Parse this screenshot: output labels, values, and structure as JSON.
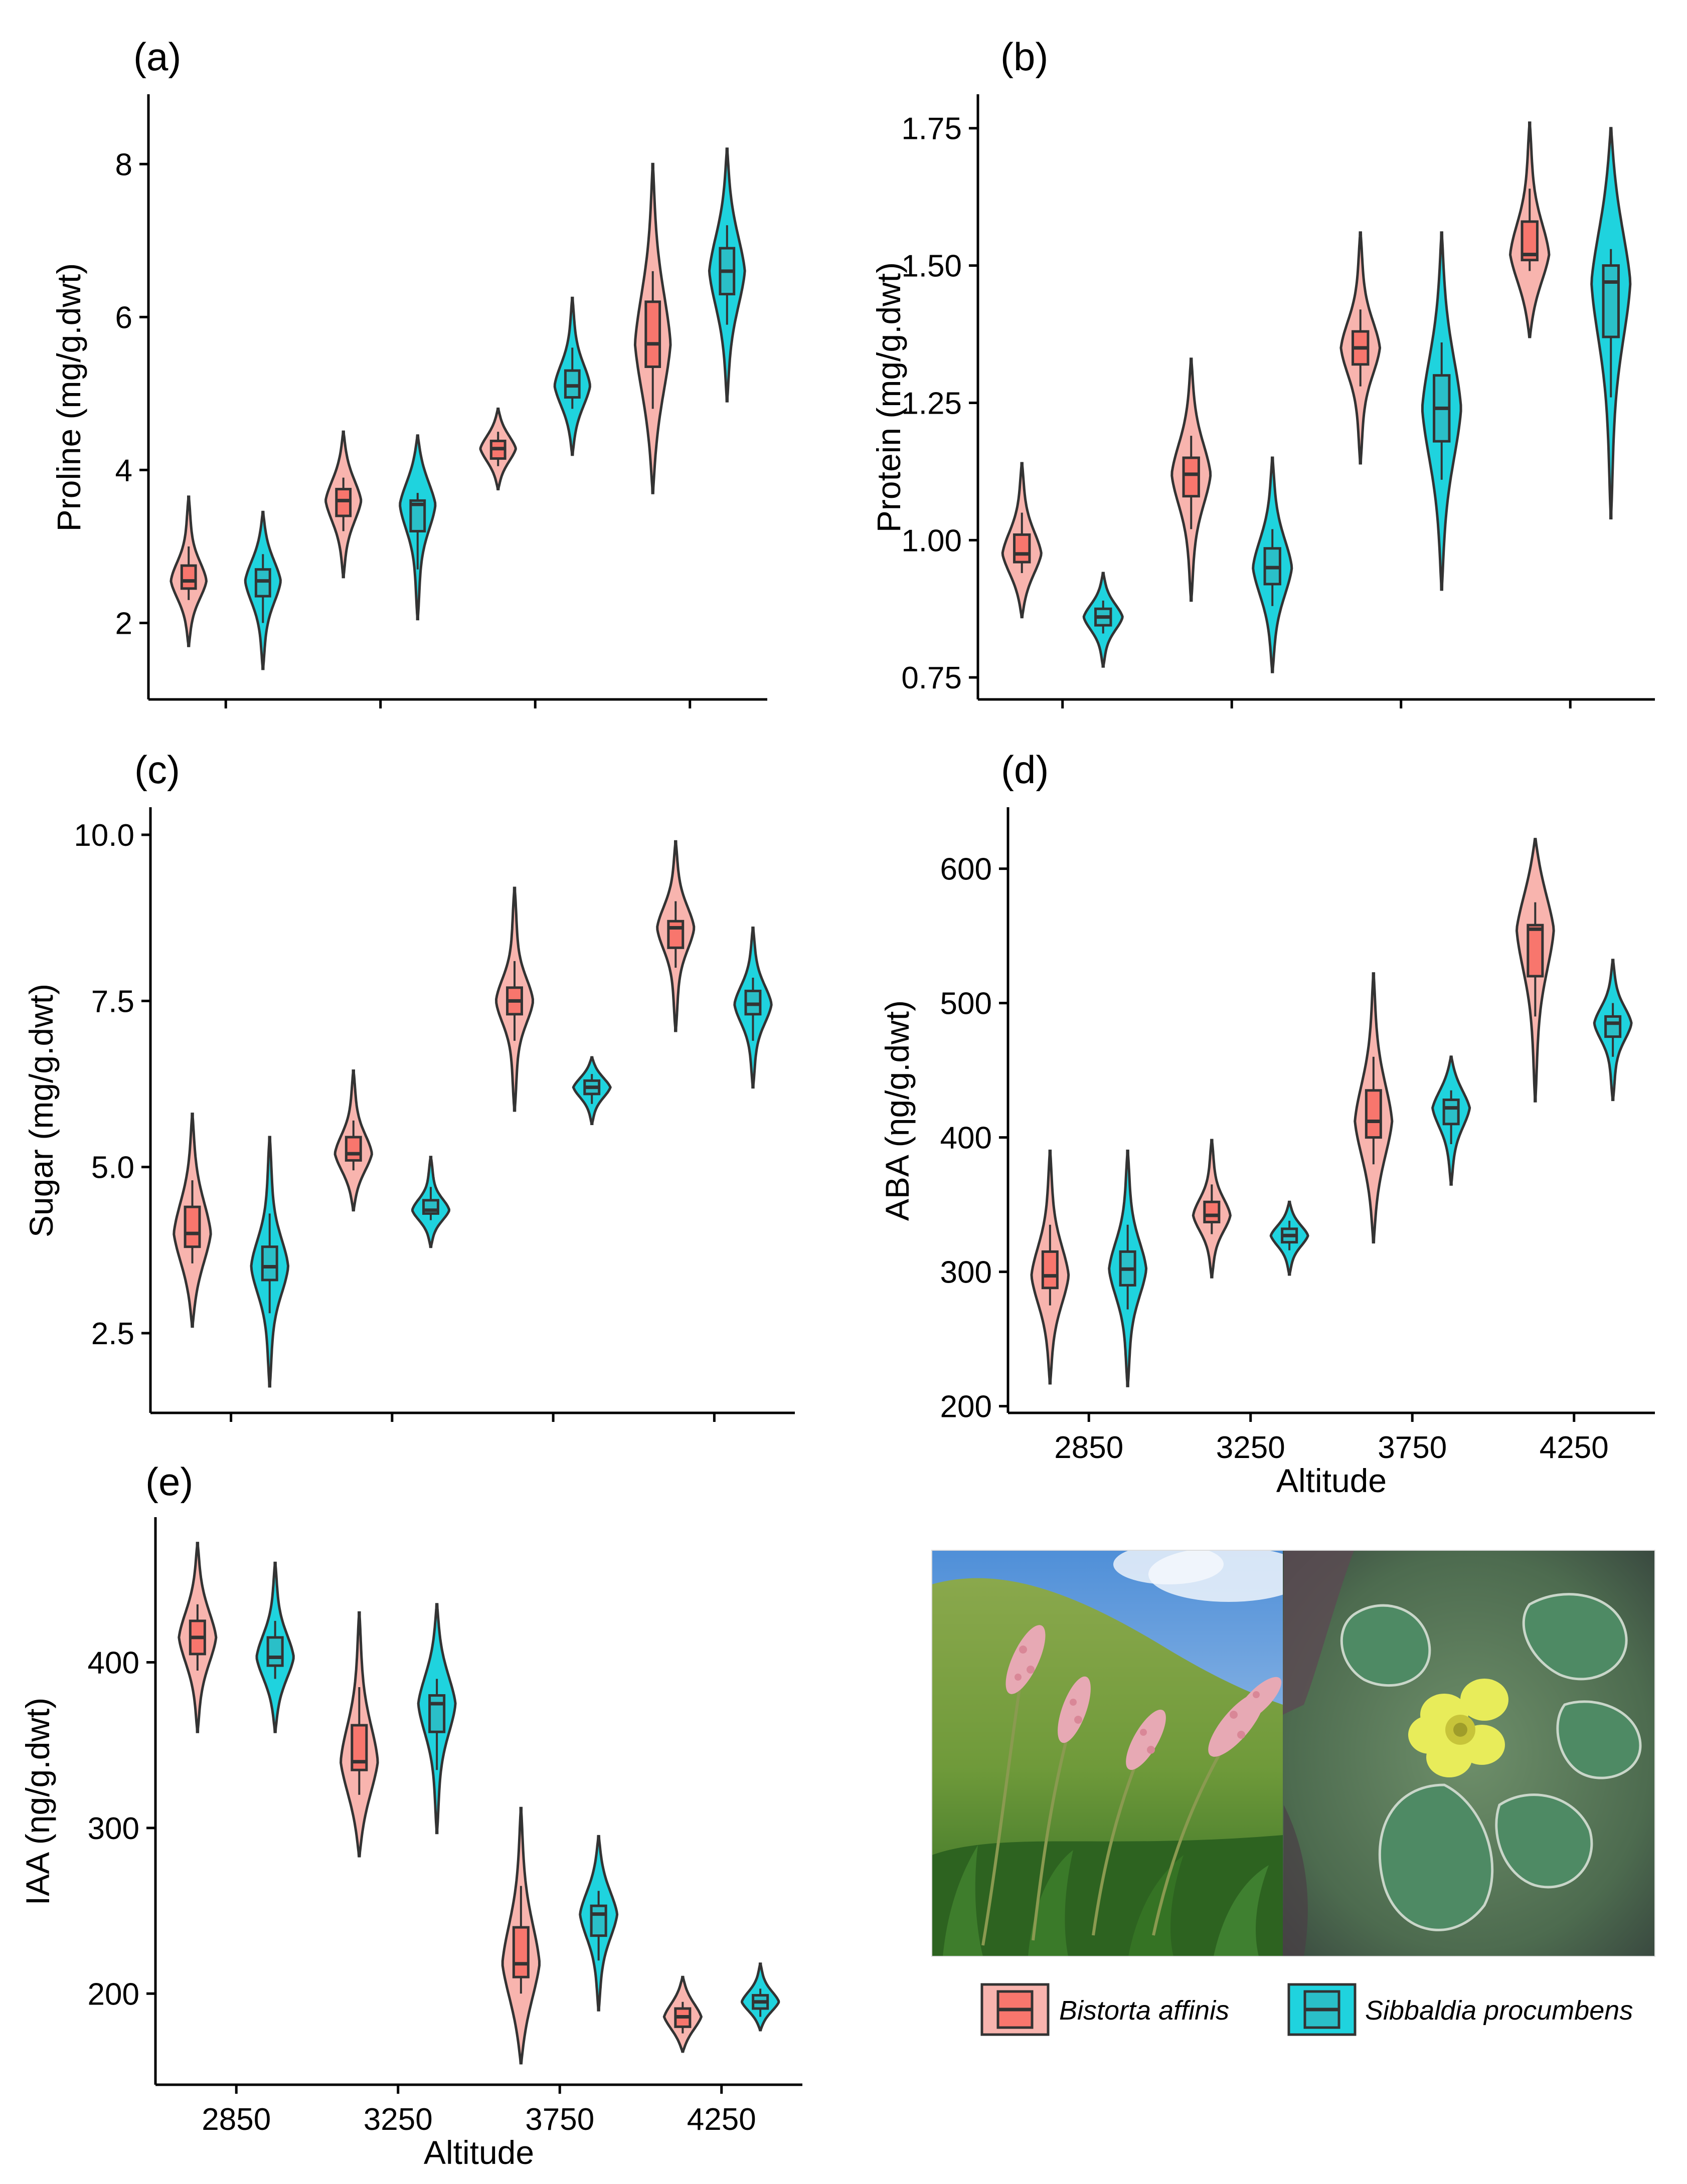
{
  "colors": {
    "Bistorta affinis": {
      "violin": "#F8B4AE",
      "box": "#F8766D"
    },
    "Sibbaldia procumbens": {
      "violin": "#1FD3DE",
      "box": "#2ABFC8"
    },
    "outline": "#333333"
  },
  "chart_data": [
    {
      "panel": "(a)",
      "type": "violin",
      "ylabel": "Proline (mg/g.dwt)",
      "xlabel": "",
      "categories": [
        "2850",
        "3250",
        "3750",
        "4250"
      ],
      "show_x_labels": false,
      "ylim": [
        1.0,
        8.9
      ],
      "yticks": [
        2,
        4,
        6,
        8
      ],
      "ytick_labels": [
        "2",
        "4",
        "6",
        "8"
      ],
      "series": [
        {
          "name": "Bistorta affinis",
          "values": [
            {
              "min": 1.7,
              "q1": 2.45,
              "median": 2.55,
              "q3": 2.75,
              "max": 3.65,
              "wlo": 2.3,
              "whi": 3.0
            },
            {
              "min": 2.6,
              "q1": 3.4,
              "median": 3.6,
              "q3": 3.75,
              "max": 4.5,
              "wlo": 3.2,
              "whi": 3.9
            },
            {
              "min": 3.75,
              "q1": 4.15,
              "median": 4.28,
              "q3": 4.38,
              "max": 4.8,
              "wlo": 4.05,
              "whi": 4.5
            },
            {
              "min": 3.7,
              "q1": 5.35,
              "median": 5.65,
              "q3": 6.2,
              "max": 8.0,
              "wlo": 4.8,
              "whi": 6.6
            }
          ]
        },
        {
          "name": "Sibbaldia procumbens",
          "values": [
            {
              "min": 1.4,
              "q1": 2.35,
              "median": 2.55,
              "q3": 2.7,
              "max": 3.45,
              "wlo": 2.0,
              "whi": 2.9
            },
            {
              "min": 2.05,
              "q1": 3.2,
              "median": 3.55,
              "q3": 3.6,
              "max": 4.45,
              "wlo": 2.7,
              "whi": 3.7
            },
            {
              "min": 4.2,
              "q1": 4.95,
              "median": 5.1,
              "q3": 5.3,
              "max": 6.25,
              "wlo": 4.8,
              "whi": 5.6
            },
            {
              "min": 4.9,
              "q1": 6.3,
              "median": 6.6,
              "q3": 6.9,
              "max": 8.2,
              "wlo": 5.9,
              "whi": 7.2
            }
          ]
        }
      ]
    },
    {
      "panel": "(b)",
      "type": "violin",
      "ylabel": "Protein (mg/g.dwt)",
      "xlabel": "",
      "categories": [
        "2850",
        "3250",
        "3750",
        "4250"
      ],
      "show_x_labels": false,
      "ylim": [
        0.71,
        1.81
      ],
      "yticks": [
        0.75,
        1.0,
        1.25,
        1.5,
        1.75
      ],
      "ytick_labels": [
        "0.75",
        "1.00",
        "1.25",
        "1.50",
        "1.75"
      ],
      "series": [
        {
          "name": "Bistorta affinis",
          "values": [
            {
              "min": 0.86,
              "q1": 0.96,
              "median": 0.975,
              "q3": 1.01,
              "max": 1.14,
              "wlo": 0.94,
              "whi": 1.05
            },
            {
              "min": 0.89,
              "q1": 1.08,
              "median": 1.12,
              "q3": 1.15,
              "max": 1.33,
              "wlo": 1.02,
              "whi": 1.19
            },
            {
              "min": 1.14,
              "q1": 1.32,
              "median": 1.35,
              "q3": 1.38,
              "max": 1.56,
              "wlo": 1.28,
              "whi": 1.42
            },
            {
              "min": 1.37,
              "q1": 1.51,
              "median": 1.52,
              "q3": 1.58,
              "max": 1.76,
              "wlo": 1.49,
              "whi": 1.64
            }
          ]
        },
        {
          "name": "Sibbaldia procumbens",
          "values": [
            {
              "min": 0.77,
              "q1": 0.845,
              "median": 0.86,
              "q3": 0.875,
              "max": 0.94,
              "wlo": 0.83,
              "whi": 0.89
            },
            {
              "min": 0.76,
              "q1": 0.92,
              "median": 0.95,
              "q3": 0.985,
              "max": 1.15,
              "wlo": 0.88,
              "whi": 1.02
            },
            {
              "min": 0.91,
              "q1": 1.18,
              "median": 1.24,
              "q3": 1.3,
              "max": 1.56,
              "wlo": 1.11,
              "whi": 1.36
            },
            {
              "min": 1.04,
              "q1": 1.37,
              "median": 1.47,
              "q3": 1.5,
              "max": 1.75,
              "wlo": 1.26,
              "whi": 1.53
            }
          ]
        }
      ]
    },
    {
      "panel": "(c)",
      "type": "violin",
      "ylabel": "Sugar (mg/g.dwt)",
      "xlabel": "",
      "categories": [
        "2850",
        "3250",
        "3750",
        "4250"
      ],
      "show_x_labels": false,
      "ylim": [
        1.3,
        10.4
      ],
      "yticks": [
        2.5,
        5.0,
        7.5,
        10.0
      ],
      "ytick_labels": [
        "2.5",
        "5.0",
        "7.5",
        "10.0"
      ],
      "series": [
        {
          "name": "Bistorta affinis",
          "values": [
            {
              "min": 2.6,
              "q1": 3.8,
              "median": 4.0,
              "q3": 4.4,
              "max": 5.8,
              "wlo": 3.55,
              "whi": 4.8
            },
            {
              "min": 4.35,
              "q1": 5.1,
              "median": 5.2,
              "q3": 5.45,
              "max": 6.45,
              "wlo": 4.95,
              "whi": 5.7
            },
            {
              "min": 5.85,
              "q1": 7.3,
              "median": 7.5,
              "q3": 7.7,
              "max": 9.2,
              "wlo": 6.9,
              "whi": 8.1
            },
            {
              "min": 7.05,
              "q1": 8.3,
              "median": 8.6,
              "q3": 8.7,
              "max": 9.9,
              "wlo": 8.0,
              "whi": 9.0
            }
          ]
        },
        {
          "name": "Sibbaldia procumbens",
          "values": [
            {
              "min": 1.7,
              "q1": 3.3,
              "median": 3.5,
              "q3": 3.8,
              "max": 5.45,
              "wlo": 2.8,
              "whi": 4.3
            },
            {
              "min": 3.8,
              "q1": 4.3,
              "median": 4.35,
              "q3": 4.5,
              "max": 5.15,
              "wlo": 4.2,
              "whi": 4.7
            },
            {
              "min": 5.65,
              "q1": 6.1,
              "median": 6.2,
              "q3": 6.3,
              "max": 6.65,
              "wlo": 5.95,
              "whi": 6.4
            },
            {
              "min": 6.2,
              "q1": 7.3,
              "median": 7.45,
              "q3": 7.65,
              "max": 8.6,
              "wlo": 6.9,
              "whi": 7.85
            }
          ]
        }
      ]
    },
    {
      "panel": "(d)",
      "type": "violin",
      "ylabel": "ABA (ηg/g.dwt)",
      "xlabel": "Altitude",
      "categories": [
        "2850",
        "3250",
        "3750",
        "4250"
      ],
      "show_x_labels": true,
      "ylim": [
        195,
        645
      ],
      "yticks": [
        200,
        300,
        400,
        500,
        600
      ],
      "ytick_labels": [
        "200",
        "300",
        "400",
        "500",
        "600"
      ],
      "series": [
        {
          "name": "Bistorta affinis",
          "values": [
            {
              "min": 217,
              "q1": 288,
              "median": 297,
              "q3": 315,
              "max": 390,
              "wlo": 275,
              "whi": 335
            },
            {
              "min": 296,
              "q1": 337,
              "median": 342,
              "q3": 352,
              "max": 398,
              "wlo": 328,
              "whi": 365
            },
            {
              "min": 322,
              "q1": 400,
              "median": 412,
              "q3": 435,
              "max": 522,
              "wlo": 380,
              "whi": 460
            },
            {
              "min": 427,
              "q1": 520,
              "median": 555,
              "q3": 558,
              "max": 622,
              "wlo": 490,
              "whi": 575
            }
          ]
        },
        {
          "name": "Sibbaldia procumbens",
          "values": [
            {
              "min": 215,
              "q1": 290,
              "median": 302,
              "q3": 315,
              "max": 390,
              "wlo": 272,
              "whi": 335
            },
            {
              "min": 298,
              "q1": 322,
              "median": 327,
              "q3": 332,
              "max": 352,
              "wlo": 316,
              "whi": 338
            },
            {
              "min": 365,
              "q1": 410,
              "median": 422,
              "q3": 428,
              "max": 460,
              "wlo": 395,
              "whi": 435
            },
            {
              "min": 428,
              "q1": 475,
              "median": 485,
              "q3": 490,
              "max": 532,
              "wlo": 460,
              "whi": 500
            }
          ]
        }
      ]
    },
    {
      "panel": "(e)",
      "type": "violin",
      "ylabel": "IAA (ηg/g.dwt)",
      "xlabel": "Altitude",
      "categories": [
        "2850",
        "3250",
        "3750",
        "4250"
      ],
      "show_x_labels": true,
      "ylim": [
        145,
        487
      ],
      "yticks": [
        200,
        300,
        400
      ],
      "ytick_labels": [
        "200",
        "300",
        "400"
      ],
      "series": [
        {
          "name": "Bistorta affinis",
          "values": [
            {
              "min": 358,
              "q1": 405,
              "median": 415,
              "q3": 425,
              "max": 472,
              "wlo": 395,
              "whi": 435
            },
            {
              "min": 283,
              "q1": 335,
              "median": 340,
              "q3": 362,
              "max": 430,
              "wlo": 320,
              "whi": 385
            },
            {
              "min": 158,
              "q1": 210,
              "median": 218,
              "q3": 240,
              "max": 312,
              "wlo": 200,
              "whi": 265
            },
            {
              "min": 165,
              "q1": 180,
              "median": 186,
              "q3": 191,
              "max": 210,
              "wlo": 176,
              "whi": 195
            }
          ]
        },
        {
          "name": "Sibbaldia procumbens",
          "values": [
            {
              "min": 358,
              "q1": 398,
              "median": 403,
              "q3": 415,
              "max": 460,
              "wlo": 390,
              "whi": 425
            },
            {
              "min": 297,
              "q1": 358,
              "median": 375,
              "q3": 380,
              "max": 435,
              "wlo": 335,
              "whi": 390
            },
            {
              "min": 190,
              "q1": 235,
              "median": 248,
              "q3": 253,
              "max": 295,
              "wlo": 220,
              "whi": 262
            },
            {
              "min": 178,
              "q1": 191,
              "median": 195,
              "q3": 199,
              "max": 218,
              "wlo": 186,
              "whi": 203
            }
          ]
        }
      ]
    }
  ],
  "legend": [
    {
      "name": "Bistorta affinis"
    },
    {
      "name": "Sibbaldia procumbens"
    }
  ],
  "photos": [
    {
      "subject": "pink-flower-spikes-meadow"
    },
    {
      "subject": "yellow-flower-green-leaves"
    }
  ]
}
